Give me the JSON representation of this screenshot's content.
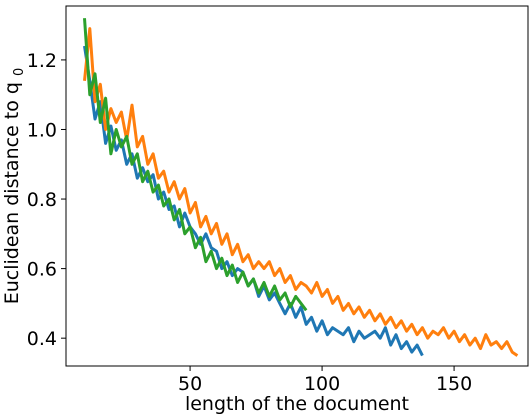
{
  "chart_data": {
    "type": "line",
    "title": "",
    "xlabel": "length of the document",
    "ylabel": "Euclidean distance to q",
    "ylabel_subscript": "0",
    "xlim": [
      3,
      178
    ],
    "ylim": [
      0.32,
      1.355
    ],
    "x_ticks": [
      50,
      100,
      150
    ],
    "y_ticks": [
      0.4,
      0.6,
      0.8,
      1.0,
      1.2
    ],
    "x_tick_labels": [
      "50",
      "100",
      "150"
    ],
    "y_tick_labels": [
      "0.4",
      "0.6",
      "0.8",
      "1.0",
      "1.2"
    ],
    "grid": false,
    "legend": "none",
    "series": [
      {
        "color": "#1f77b4",
        "x": [
          10,
          12,
          14,
          16,
          18,
          20,
          22,
          24,
          26,
          28,
          30,
          32,
          34,
          36,
          38,
          40,
          42,
          44,
          46,
          48,
          50,
          52,
          54,
          56,
          58,
          60,
          62,
          64,
          66,
          68,
          70,
          72,
          74,
          76,
          78,
          80,
          82,
          84,
          86,
          88,
          90,
          92,
          94,
          96,
          98,
          100,
          102,
          104,
          106,
          108,
          110,
          112,
          114,
          116,
          118,
          120,
          122,
          124,
          126,
          128,
          130,
          132,
          134,
          136,
          138
        ],
        "y": [
          1.24,
          1.14,
          1.03,
          1.08,
          0.96,
          1.01,
          0.94,
          0.97,
          0.9,
          0.93,
          0.86,
          0.89,
          0.85,
          0.87,
          0.8,
          0.82,
          0.77,
          0.78,
          0.72,
          0.76,
          0.72,
          0.7,
          0.67,
          0.7,
          0.66,
          0.65,
          0.6,
          0.62,
          0.58,
          0.6,
          0.59,
          0.55,
          0.57,
          0.52,
          0.55,
          0.51,
          0.53,
          0.5,
          0.47,
          0.5,
          0.46,
          0.49,
          0.44,
          0.46,
          0.42,
          0.45,
          0.41,
          0.43,
          0.42,
          0.41,
          0.43,
          0.39,
          0.42,
          0.4,
          0.41,
          0.42,
          0.4,
          0.43,
          0.38,
          0.41,
          0.37,
          0.39,
          0.36,
          0.38,
          0.35
        ]
      },
      {
        "color": "#ff7f0e",
        "x": [
          10,
          12,
          14,
          16,
          18,
          20,
          22,
          24,
          26,
          28,
          30,
          32,
          34,
          36,
          38,
          40,
          42,
          44,
          46,
          48,
          50,
          52,
          54,
          56,
          58,
          60,
          62,
          64,
          66,
          68,
          70,
          72,
          74,
          76,
          78,
          80,
          82,
          84,
          86,
          88,
          90,
          92,
          94,
          96,
          98,
          100,
          102,
          104,
          106,
          108,
          110,
          112,
          114,
          116,
          118,
          120,
          122,
          124,
          126,
          128,
          130,
          132,
          134,
          136,
          138,
          140,
          142,
          144,
          146,
          148,
          150,
          152,
          154,
          156,
          158,
          160,
          162,
          164,
          166,
          168,
          170,
          172,
          174
        ],
        "y": [
          1.14,
          1.29,
          1.08,
          1.13,
          1.0,
          1.06,
          1.02,
          1.05,
          0.97,
          1.07,
          0.95,
          0.98,
          0.9,
          0.93,
          0.86,
          0.88,
          0.82,
          0.85,
          0.8,
          0.83,
          0.76,
          0.79,
          0.72,
          0.75,
          0.7,
          0.73,
          0.67,
          0.7,
          0.64,
          0.67,
          0.62,
          0.64,
          0.6,
          0.62,
          0.6,
          0.62,
          0.58,
          0.6,
          0.56,
          0.58,
          0.54,
          0.56,
          0.55,
          0.53,
          0.56,
          0.52,
          0.54,
          0.5,
          0.52,
          0.48,
          0.5,
          0.47,
          0.49,
          0.46,
          0.48,
          0.45,
          0.47,
          0.44,
          0.46,
          0.43,
          0.45,
          0.42,
          0.44,
          0.41,
          0.43,
          0.4,
          0.42,
          0.41,
          0.43,
          0.4,
          0.42,
          0.39,
          0.41,
          0.38,
          0.4,
          0.37,
          0.41,
          0.38,
          0.39,
          0.37,
          0.39,
          0.36,
          0.35
        ]
      },
      {
        "color": "#2ca02c",
        "x": [
          10,
          12,
          14,
          16,
          18,
          20,
          22,
          24,
          26,
          28,
          30,
          32,
          34,
          36,
          38,
          40,
          42,
          44,
          46,
          48,
          50,
          52,
          54,
          56,
          58,
          60,
          62,
          64,
          66,
          68,
          70,
          72,
          74,
          76,
          78,
          80,
          82,
          84,
          86,
          88,
          90,
          92,
          94
        ],
        "y": [
          1.32,
          1.1,
          1.16,
          1.02,
          1.09,
          0.93,
          1.0,
          0.95,
          0.98,
          0.9,
          0.93,
          0.85,
          0.88,
          0.82,
          0.84,
          0.78,
          0.8,
          0.74,
          0.77,
          0.7,
          0.72,
          0.66,
          0.69,
          0.62,
          0.65,
          0.6,
          0.63,
          0.58,
          0.61,
          0.56,
          0.59,
          0.55,
          0.57,
          0.53,
          0.56,
          0.52,
          0.55,
          0.51,
          0.53,
          0.49,
          0.52,
          0.5,
          0.48
        ]
      }
    ]
  }
}
